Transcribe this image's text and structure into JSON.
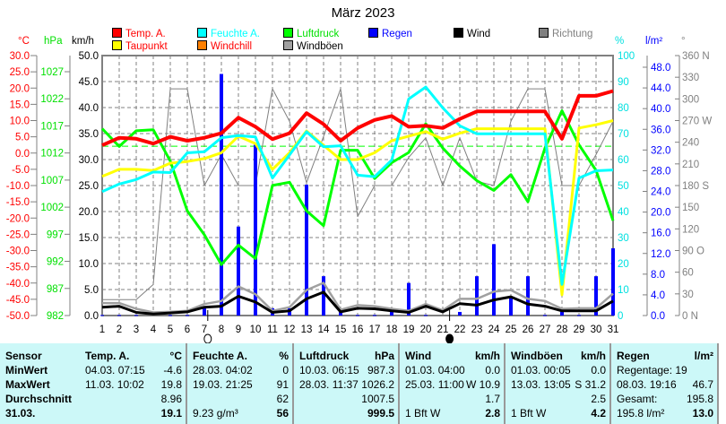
{
  "title": "März 2023",
  "legend": [
    {
      "label": "Temp. A.",
      "box": "#ff0000",
      "text": "#ff0000"
    },
    {
      "label": "Feuchte A.",
      "box": "#00ffff",
      "text": "#00ffff"
    },
    {
      "label": "Luftdruck",
      "box": "#00ff00",
      "text": "#00e000"
    },
    {
      "label": "Regen",
      "box": "#0000ff",
      "text": "#0000ff"
    },
    {
      "label": "Wind",
      "box": "#000000",
      "text": "#000000"
    },
    {
      "label": "Richtung",
      "box": "#808080",
      "text": "#808080"
    },
    {
      "label": "Taupunkt",
      "box": "#ffff00",
      "text": "#ff0000"
    },
    {
      "label": "Windchill",
      "box": "#ff8000",
      "text": "#ff0000"
    },
    {
      "label": "Windböen",
      "box": "#a0a0a0",
      "text": "#000000"
    }
  ],
  "units": {
    "temp": "°C",
    "hpa": "hPa",
    "kmh": "km/h",
    "pct": "%",
    "rain": "l/m²",
    "deg": "°"
  },
  "axes": {
    "temp": [
      "30.0",
      "25.0",
      "20.0",
      "15.0",
      "10.0",
      "5.0",
      "0.0",
      "-5.0",
      "-10.0",
      "-15.0",
      "-20.0",
      "-25.0",
      "-30.0",
      "-35.0",
      "-40.0",
      "-45.0",
      "-50.0"
    ],
    "hpa": [
      "1027",
      "1022",
      "1017",
      "1012",
      "1007",
      "1002",
      "997",
      "992",
      "987",
      "982"
    ],
    "kmh": [
      "50.0",
      "45.0",
      "40.0",
      "35.0",
      "30.0",
      "25.0",
      "20.0",
      "15.0",
      "10.0",
      "5.0",
      "0.0"
    ],
    "pct": [
      "100",
      "90",
      "80",
      "70",
      "60",
      "50",
      "40",
      "30",
      "20",
      "10",
      "0"
    ],
    "rain": [
      "48.0",
      "44.0",
      "40.0",
      "36.0",
      "32.0",
      "28.0",
      "24.0",
      "20.0",
      "16.0",
      "12.0",
      "8.0",
      "4.0",
      "0.0"
    ],
    "deg": [
      "360 N",
      "330",
      "300",
      "270 W",
      "240",
      "210",
      "180 S",
      "150",
      "120",
      "90  O",
      "60",
      "30",
      "0   N"
    ]
  },
  "chart_data": {
    "type": "line",
    "title": "März 2023",
    "x": [
      1,
      2,
      3,
      4,
      5,
      6,
      7,
      8,
      9,
      10,
      11,
      12,
      13,
      14,
      15,
      16,
      17,
      18,
      19,
      20,
      21,
      22,
      23,
      24,
      25,
      26,
      27,
      28,
      29,
      30,
      31
    ],
    "xlim": [
      1,
      31
    ],
    "ylim": {
      "temp": [
        -50,
        30
      ],
      "hpa": [
        982,
        1030
      ],
      "kmh": [
        0,
        50
      ],
      "pct": [
        0,
        100
      ],
      "rain": [
        0,
        50
      ],
      "deg": [
        0,
        360
      ]
    },
    "reference_line_hpa": 1013.25,
    "moon_phases": [
      {
        "type": "full",
        "day": 7.2
      },
      {
        "type": "new",
        "day": 21.4
      }
    ],
    "series": [
      {
        "name": "Richtung",
        "axis": "deg",
        "color": "#808080",
        "values": [
          22,
          22,
          22,
          43,
          314,
          314,
          180,
          223,
          180,
          180,
          314,
          269,
          184,
          248,
          314,
          137,
          180,
          180,
          219,
          246,
          180,
          246,
          186,
          180,
          269,
          314,
          314,
          180,
          180,
          223,
          269
        ]
      },
      {
        "name": "Regen",
        "axis": "rain",
        "color": "#0000ff",
        "kind": "bar",
        "values": [
          0.1,
          0.1,
          0.1,
          0,
          0.1,
          0.1,
          1.6,
          46.7,
          17.2,
          33.0,
          1.4,
          1.4,
          25.3,
          7.6,
          0.7,
          0.1,
          0.1,
          0.7,
          6.3,
          0.1,
          0,
          0.7,
          7.6,
          13.8,
          3.6,
          7.6,
          0.1,
          0.7,
          0.1,
          7.6,
          13.0
        ]
      },
      {
        "name": "Windböen",
        "axis": "kmh",
        "color": "#a0a0a0",
        "values": [
          2.4,
          2.4,
          1.3,
          0.6,
          0.7,
          0.9,
          2.2,
          2.8,
          5.6,
          4.1,
          0.9,
          1.6,
          4.9,
          6.3,
          1.1,
          2.0,
          1.8,
          1.3,
          0.9,
          2.2,
          1.0,
          3.2,
          3.2,
          4.6,
          4.9,
          3.2,
          2.8,
          1.3,
          1.4,
          1.4,
          4.2
        ]
      },
      {
        "name": "Wind",
        "axis": "kmh",
        "color": "#000000",
        "values": [
          1.6,
          1.8,
          0.6,
          0.3,
          0.5,
          0.7,
          1.6,
          1.8,
          3.7,
          2.6,
          0.6,
          0.9,
          3.2,
          4.5,
          0.7,
          1.4,
          1.3,
          0.9,
          0.6,
          1.8,
          0.7,
          2.3,
          2.0,
          3.0,
          3.6,
          2.2,
          1.8,
          0.9,
          0.9,
          0.9,
          2.8
        ]
      },
      {
        "name": "Luftdruck",
        "axis": "hpa",
        "color": "#00ff00",
        "values": [
          1016.5,
          1013.2,
          1016.1,
          1016.3,
          1010.5,
          1001.3,
          996.9,
          991.4,
          995.0,
          992.5,
          1006.0,
          1006.6,
          1001.3,
          998.6,
          1012.5,
          1012.5,
          1007.3,
          1010.2,
          1012.1,
          1017.4,
          1012.9,
          1009.6,
          1006.9,
          1005.1,
          1008.0,
          1003.0,
          1012.9,
          1019.8,
          1013.5,
          1008.8,
          999.5
        ]
      },
      {
        "name": "Taupunkt",
        "axis": "temp",
        "color": "#ffff00",
        "values": [
          -7.2,
          -5.0,
          -5.0,
          -5.4,
          -3.1,
          -2.6,
          -1.7,
          0.1,
          5.2,
          2.9,
          -5.0,
          0.1,
          6.8,
          2.4,
          -2.0,
          -2.0,
          0.1,
          3.8,
          5.2,
          6.6,
          4.3,
          6.1,
          7.5,
          7.5,
          7.5,
          7.5,
          7.5,
          -43.6,
          7.7,
          8.7,
          10.0
        ]
      },
      {
        "name": "Feuchte A.",
        "axis": "pct",
        "color": "#00ffff",
        "values": [
          47.7,
          50.6,
          52.3,
          55.2,
          55.0,
          62.6,
          63.0,
          68.4,
          69.2,
          68.7,
          52.9,
          61.8,
          70.7,
          64.9,
          65.3,
          54.0,
          53.4,
          59.8,
          83.3,
          87.9,
          79.9,
          73.0,
          69.9,
          69.9,
          69.9,
          69.9,
          69.9,
          12.0,
          52.9,
          55.7,
          56.0
        ]
      },
      {
        "name": "Temp. A.",
        "axis": "temp",
        "color": "#ff0000",
        "values": [
          2.4,
          4.7,
          4.4,
          2.9,
          5.0,
          3.8,
          4.7,
          6.1,
          10.9,
          8.1,
          4.3,
          6.1,
          12.3,
          8.9,
          3.8,
          7.7,
          10.2,
          11.4,
          8.1,
          8.4,
          7.7,
          10.5,
          12.8,
          12.8,
          12.8,
          12.8,
          12.8,
          4.4,
          17.6,
          17.6,
          19.1
        ]
      }
    ]
  },
  "table": {
    "sensor": [
      "Sensor",
      "MinWert",
      "MaxWert",
      "Durchschnitt",
      "31.03."
    ],
    "columns": [
      {
        "header": "Temp. A.",
        "unit": "°C",
        "rows": [
          [
            "04.03.  07:15",
            "-4.6"
          ],
          [
            "11.03.  10:02",
            "19.8"
          ],
          [
            "",
            "8.96"
          ],
          [
            "",
            "19.1"
          ]
        ]
      },
      {
        "header": "Feuchte A.",
        "unit": "%",
        "rows": [
          [
            "28.03.  04:02",
            "0"
          ],
          [
            "19.03.  21:25",
            "91"
          ],
          [
            "",
            "62"
          ],
          [
            "9.23 g/m³",
            "56"
          ]
        ]
      },
      {
        "header": "Luftdruck",
        "unit": "hPa",
        "rows": [
          [
            "10.03.  06:15",
            "987.3"
          ],
          [
            "28.03.  11:37",
            "1026.2"
          ],
          [
            "",
            "1007.5"
          ],
          [
            "",
            "999.5"
          ]
        ]
      },
      {
        "header": "Wind",
        "unit": "km/h",
        "rows": [
          [
            "01.03.  04:00",
            "0.0"
          ],
          [
            "25.03.  11:00",
            "W 10.9"
          ],
          [
            "",
            "1.7"
          ],
          [
            "1 Bft W",
            "2.8"
          ]
        ]
      },
      {
        "header": "Windböen",
        "unit": "km/h",
        "rows": [
          [
            "01.03.  00:05",
            "0.0"
          ],
          [
            "13.03.  13:05",
            "S 31.2"
          ],
          [
            "",
            "2.5"
          ],
          [
            "1 Bft W",
            "4.2"
          ]
        ]
      },
      {
        "header": "Regen",
        "unit": "l/m²",
        "rows": [
          [
            "Regentage: 19",
            ""
          ],
          [
            "08.03.  19:16",
            "46.7"
          ],
          [
            "Gesamt:",
            "195.8"
          ],
          [
            "195.8 l/m²",
            "13.0"
          ]
        ]
      }
    ]
  }
}
